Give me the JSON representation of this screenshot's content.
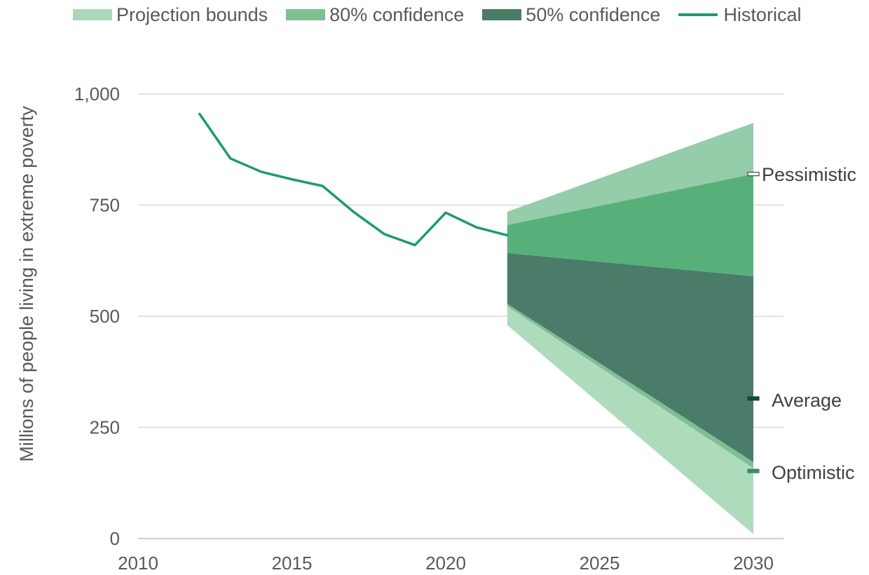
{
  "chart_data": {
    "type": "area",
    "title": "",
    "xlabel": "",
    "ylabel": "Millions of people living in extreme poverty",
    "xlim": [
      2010,
      2031
    ],
    "ylim": [
      0,
      1000
    ],
    "x_ticks": [
      2010,
      2015,
      2020,
      2025,
      2030
    ],
    "y_ticks": [
      0,
      250,
      500,
      750,
      1000
    ],
    "y_tick_labels": [
      "0",
      "250",
      "500",
      "750",
      "1,000"
    ],
    "grid": "horizontal",
    "legend_position": "top",
    "legend": [
      {
        "label": "Projection bounds",
        "kind": "area",
        "color": "#a9d8b8"
      },
      {
        "label": "80% confidence",
        "kind": "area",
        "color": "#7fbf95"
      },
      {
        "label": "50% confidence",
        "kind": "area",
        "color": "#4a7c66"
      },
      {
        "label": "Historical",
        "kind": "line",
        "color": "#1f9a6e"
      }
    ],
    "historical": {
      "name": "Historical",
      "color": "#1f9a6e",
      "x": [
        2012,
        2013,
        2014,
        2015,
        2016,
        2017,
        2018,
        2019,
        2020,
        2021,
        2022
      ],
      "values": [
        955,
        855,
        825,
        808,
        793,
        735,
        685,
        660,
        733,
        700,
        682
      ]
    },
    "bands": [
      {
        "name": "Projection bounds (upper)",
        "color": "#95cca9",
        "x": [
          2022,
          2030
        ],
        "lower": [
          705,
          820
        ],
        "upper": [
          735,
          935
        ]
      },
      {
        "name": "80% confidence (upper)",
        "color": "#57b07a",
        "x": [
          2022,
          2030
        ],
        "lower": [
          642,
          590
        ],
        "upper": [
          705,
          820
        ]
      },
      {
        "name": "50% confidence",
        "color": "#4a7c69",
        "x": [
          2022,
          2030
        ],
        "lower": [
          528,
          172
        ],
        "upper": [
          642,
          590
        ]
      },
      {
        "name": "80% confidence (lower)",
        "color": "#7fbf95",
        "x": [
          2022,
          2030
        ],
        "lower": [
          522,
          158
        ],
        "upper": [
          528,
          172
        ]
      },
      {
        "name": "Projection bounds (lower)",
        "color": "#afdbbd",
        "x": [
          2022,
          2030
        ],
        "lower": [
          480,
          10
        ],
        "upper": [
          522,
          158
        ]
      }
    ],
    "scenarios": [
      {
        "label": "Pessimistic",
        "value": 820,
        "color": "#ffffff",
        "stroke": "#2d5a45"
      },
      {
        "label": "Average",
        "value": 315,
        "color": "#0f4d36",
        "stroke": "#0f4d36"
      },
      {
        "label": "Optimistic",
        "value": 152,
        "color": "#3a8a66",
        "stroke": "#3a8a66"
      }
    ]
  }
}
